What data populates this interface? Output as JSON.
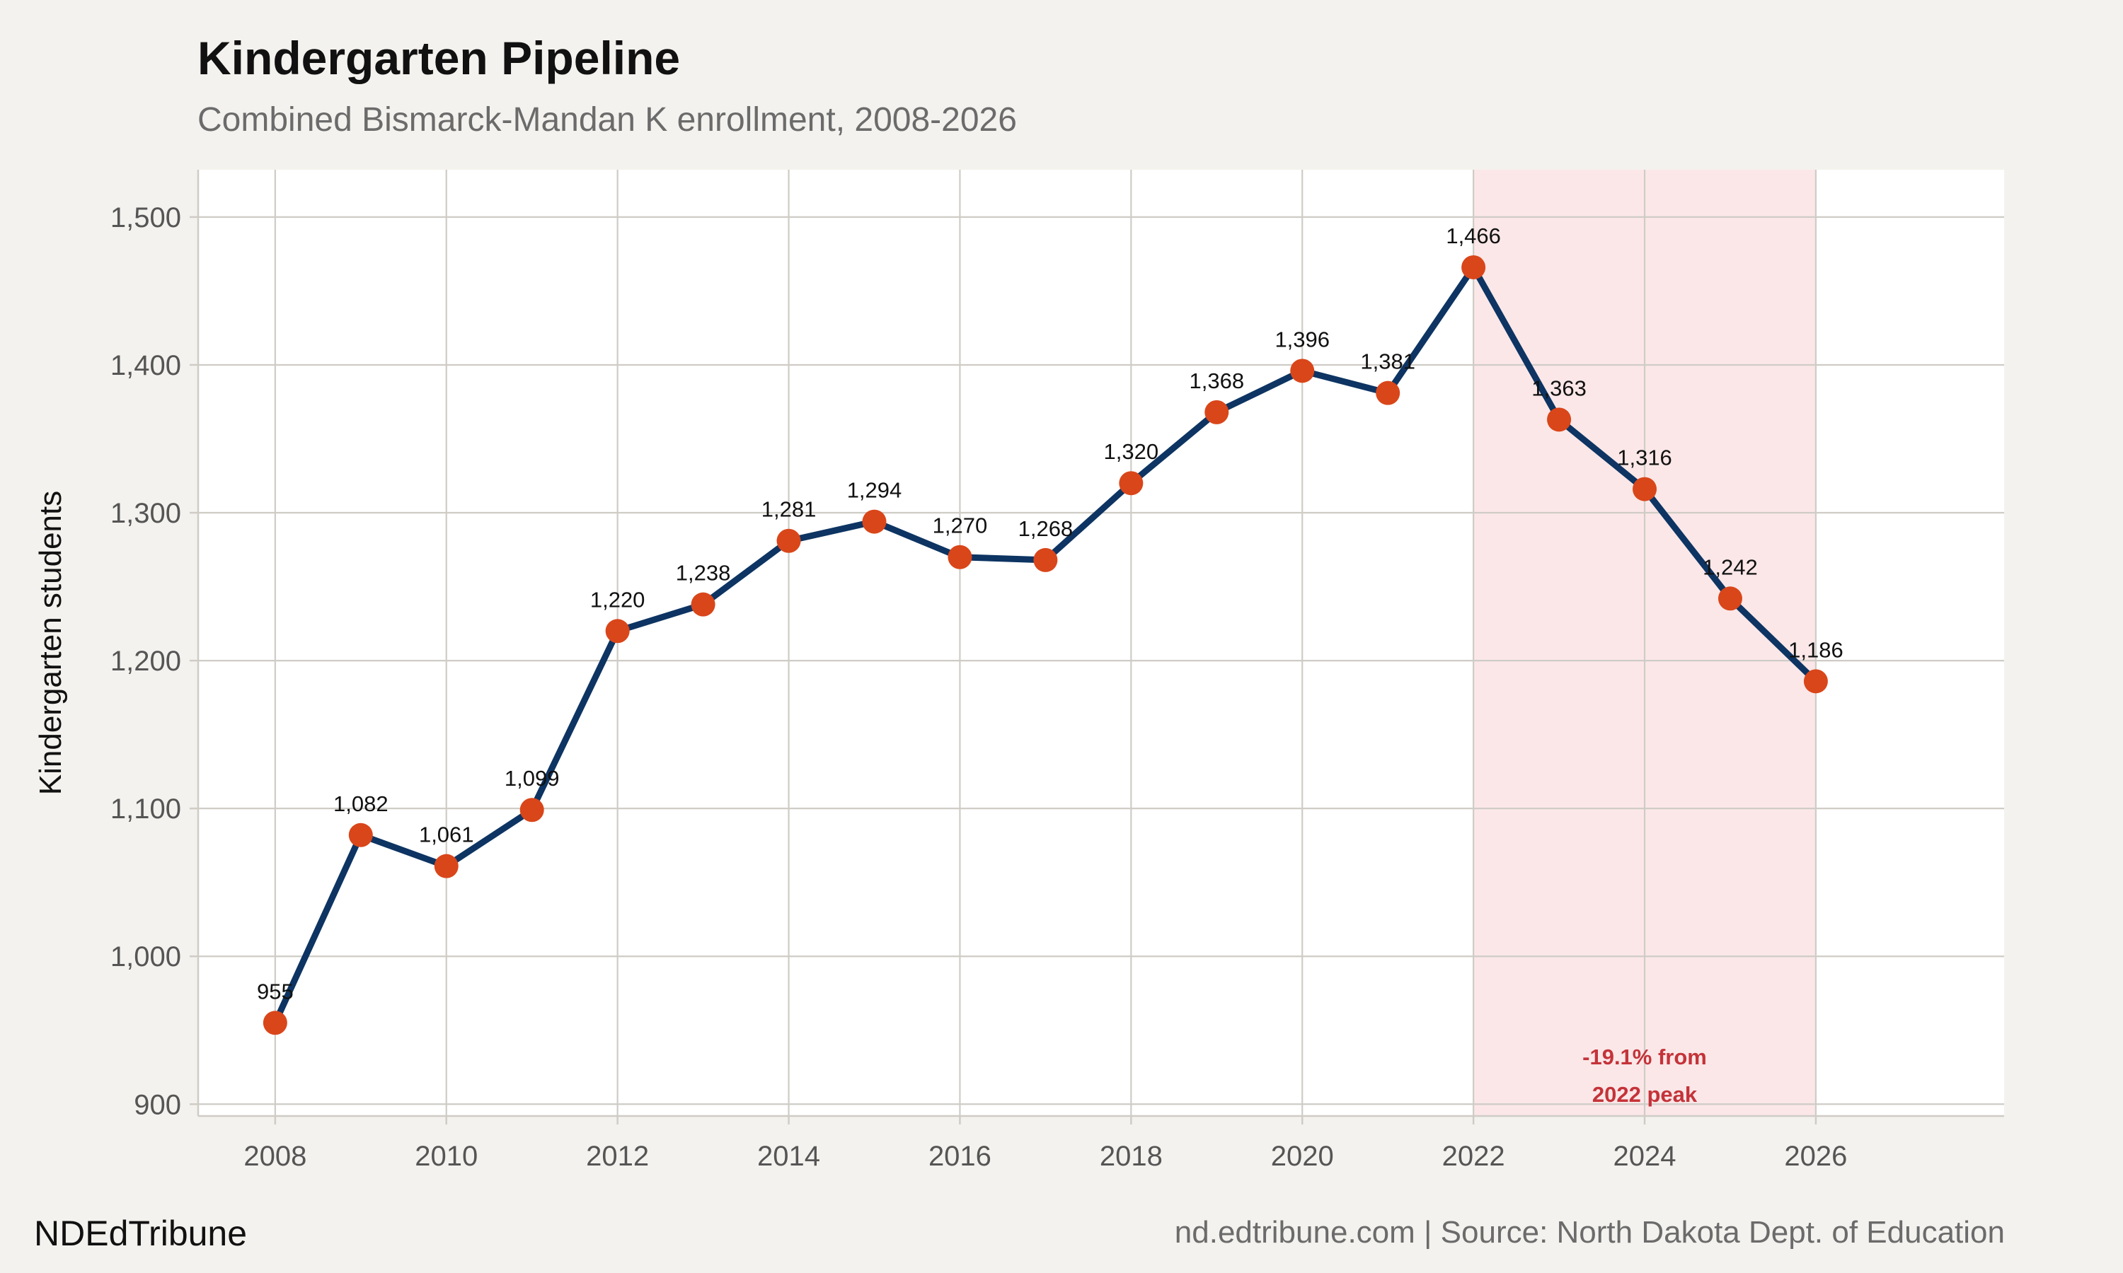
{
  "title": "Kindergarten Pipeline",
  "subtitle": "Combined Bismarck-Mandan K enrollment, 2008-2026",
  "brand": "NDEdTribune",
  "source": "nd.edtribune.com | Source: North Dakota Dept. of Education",
  "colors": {
    "line": "#0d3462",
    "point": "#d9461a",
    "shade": "#fbe7e8",
    "annotation": "#c43339",
    "panel": "#ffffff",
    "background": "#f4f2ee",
    "grid": "#cfccc6"
  },
  "chart_data": {
    "type": "line",
    "title": "Kindergarten Pipeline",
    "subtitle": "Combined Bismarck-Mandan K enrollment, 2008-2026",
    "xlabel": "",
    "ylabel": "Kindergarten students",
    "xlim": [
      2007.1,
      2028.2
    ],
    "ylim": [
      892,
      1532
    ],
    "x_ticks": [
      2008,
      2010,
      2012,
      2014,
      2016,
      2018,
      2020,
      2022,
      2024,
      2026
    ],
    "y_ticks": [
      900,
      1000,
      1100,
      1200,
      1300,
      1400,
      1500
    ],
    "y_tick_labels": [
      "900",
      "1,000",
      "1,100",
      "1,200",
      "1,300",
      "1,400",
      "1,500"
    ],
    "grid": true,
    "legend": "none",
    "series": [
      {
        "x": [
          2008,
          2009,
          2010,
          2011,
          2012,
          2013,
          2014,
          2015,
          2016,
          2017,
          2018,
          2019,
          2020,
          2021,
          2022,
          2023,
          2024,
          2025,
          2026
        ],
        "values": [
          955,
          1082,
          1061,
          1099,
          1220,
          1238,
          1281,
          1294,
          1270,
          1268,
          1320,
          1368,
          1396,
          1381,
          1466,
          1363,
          1316,
          1242,
          1186
        ],
        "labels": [
          "955",
          "1,082",
          "1,061",
          "1,099",
          "1,220",
          "1,238",
          "1,281",
          "1,294",
          "1,270",
          "1,268",
          "1,320",
          "1,368",
          "1,396",
          "1,381",
          "1,466",
          "1,363",
          "1,316",
          "1,242",
          "1,186"
        ]
      }
    ],
    "shaded_region": {
      "x_start": 2022,
      "x_end": 2026
    },
    "annotation": {
      "x": 2024,
      "y": 905,
      "lines": [
        "-19.1% from",
        "2022 peak"
      ]
    }
  }
}
